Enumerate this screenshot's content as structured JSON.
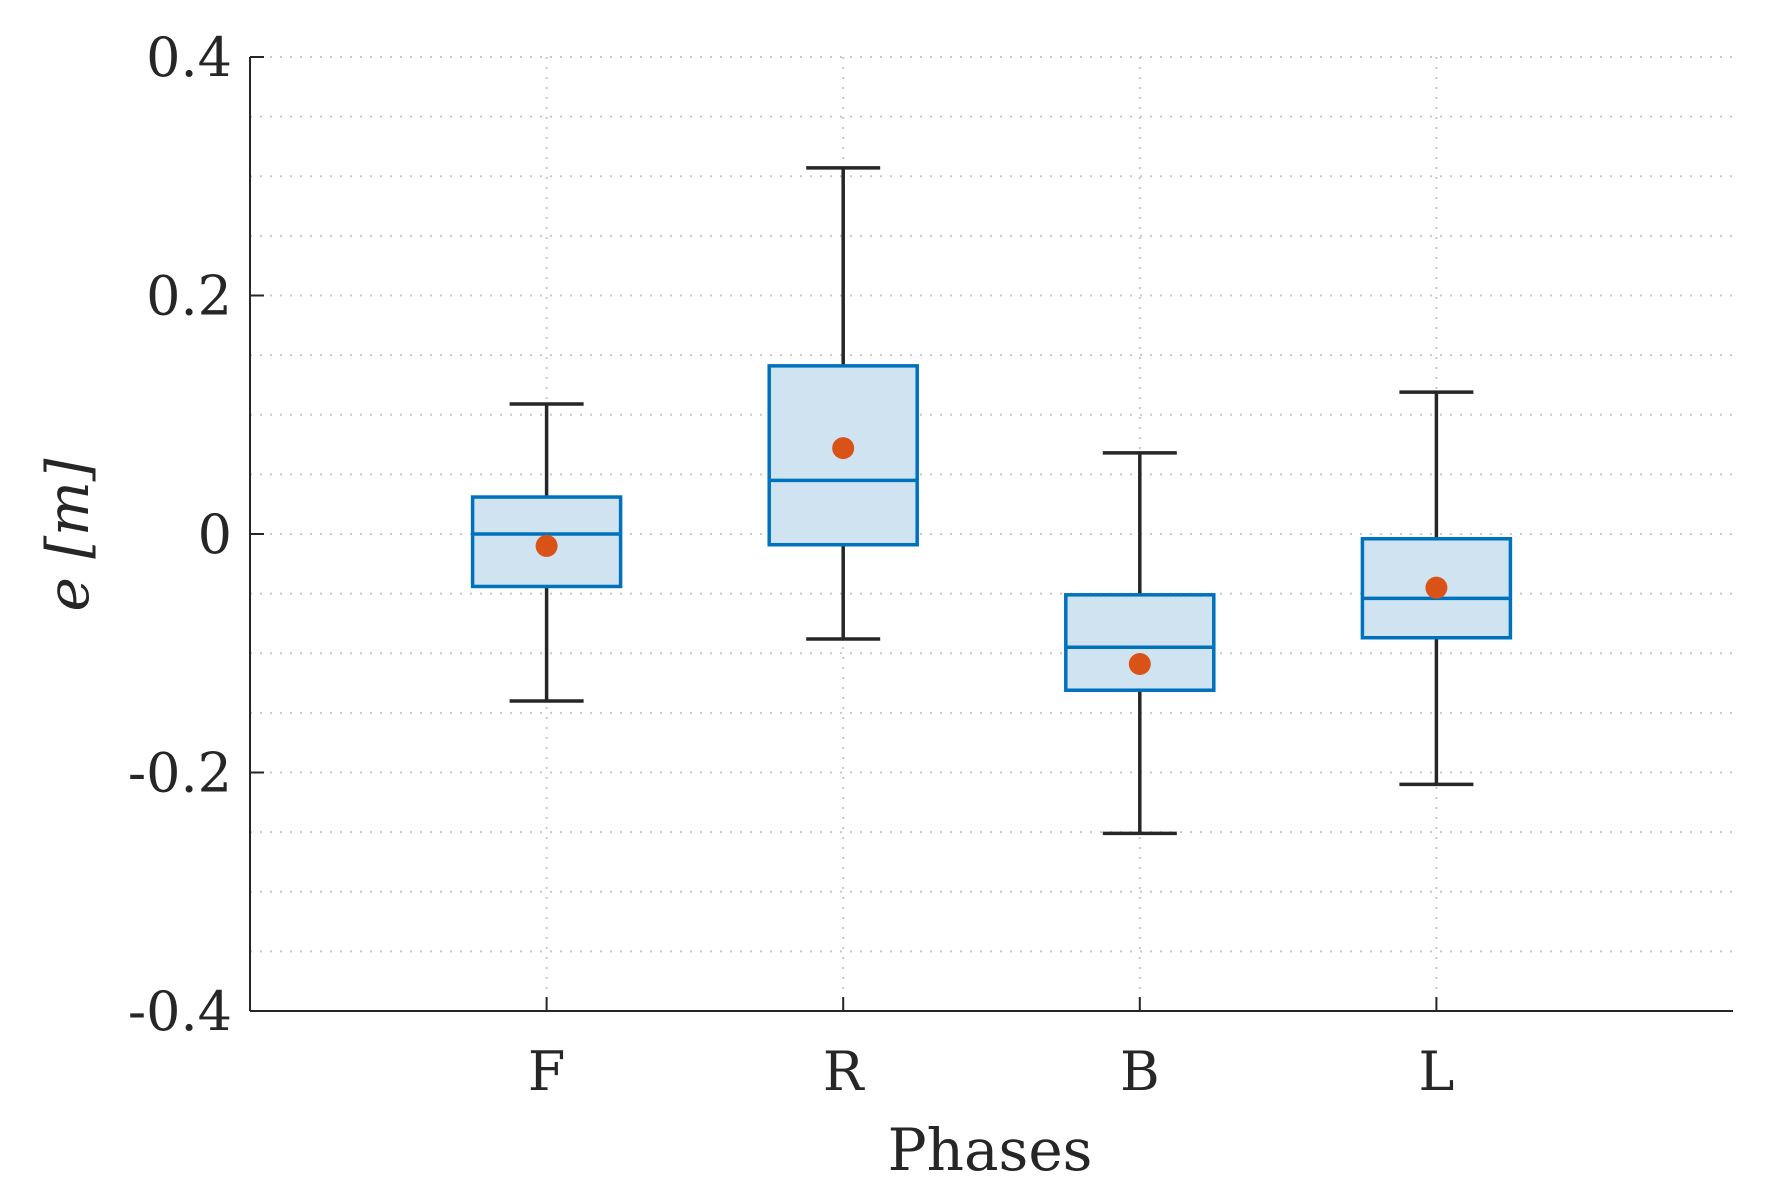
{
  "chart_data": {
    "type": "box",
    "title": "",
    "xlabel": "Phases",
    "ylabel": "e [m]",
    "ylim": [
      -0.4,
      0.4
    ],
    "yticks": [
      -0.4,
      -0.2,
      0,
      0.2,
      0.4
    ],
    "ytick_labels": [
      "-0.4",
      "-0.2",
      "0",
      "0.2",
      "0.4"
    ],
    "yminor_step": 0.05,
    "categories": [
      "F",
      "R",
      "B",
      "L"
    ],
    "grid": true,
    "series": [
      {
        "name": "F",
        "whisker_low": -0.14,
        "q1": -0.044,
        "median": 0.0,
        "q3": 0.031,
        "whisker_high": 0.109,
        "mean": -0.01
      },
      {
        "name": "R",
        "whisker_low": -0.088,
        "q1": -0.009,
        "median": 0.045,
        "q3": 0.141,
        "whisker_high": 0.307,
        "mean": 0.072
      },
      {
        "name": "B",
        "whisker_low": -0.251,
        "q1": -0.131,
        "median": -0.095,
        "q3": -0.051,
        "whisker_high": 0.068,
        "mean": -0.109
      },
      {
        "name": "L",
        "whisker_low": -0.21,
        "q1": -0.087,
        "median": -0.054,
        "q3": -0.004,
        "whisker_high": 0.119,
        "mean": -0.045
      }
    ],
    "colors": {
      "box_edge": "#0072BD",
      "box_fill": "#CFE3F1",
      "whisker": "#262626",
      "mean_marker": "#D95319",
      "axis": "#262626",
      "grid": "#C8C8C8"
    }
  }
}
